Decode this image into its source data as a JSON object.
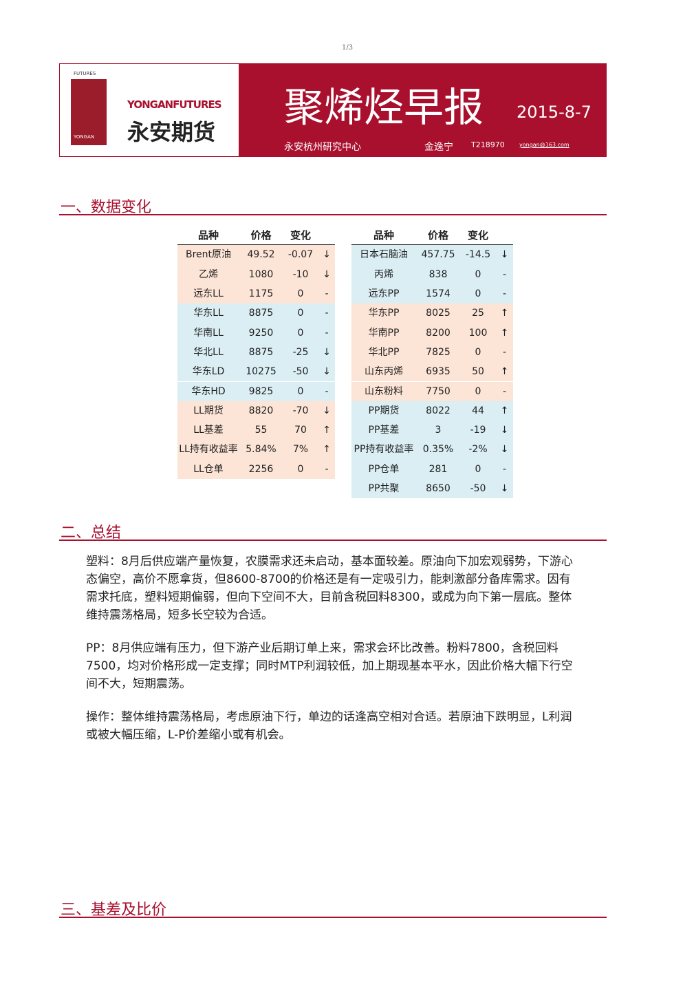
{
  "page_number": "1/3",
  "header": {
    "logo_small": "FUTURES",
    "logo_brand": "YONGANFUTURES",
    "logo_cn": "永安期货",
    "logo_bottom": "YONGAN",
    "title": "聚烯烃早报",
    "date": "2015-8-7",
    "org": "永安杭州研究中心",
    "author": "金逸宁",
    "license": "T218970",
    "email": "yongan@163.com"
  },
  "sections": [
    "一、数据变化",
    "二、总结",
    "三、基差及比价"
  ],
  "tables": [
    {
      "headers": [
        "品种",
        "价格",
        "变化"
      ],
      "groups": [
        [
          [
            "Brent原油",
            "49.52",
            "-0.07",
            "↓"
          ],
          [
            "乙烯",
            "1080",
            "-10",
            "↓"
          ],
          [
            "远东LL",
            "1175",
            "0",
            "-"
          ]
        ],
        [
          [
            "华东LL",
            "8875",
            "0",
            "-"
          ],
          [
            "华南LL",
            "9250",
            "0",
            "-"
          ],
          [
            "华北LL",
            "8875",
            "-25",
            "↓"
          ],
          [
            "华东LD",
            "10275",
            "-50",
            "↓"
          ],
          [
            "华东HD",
            "9825",
            "0",
            "-"
          ]
        ],
        [
          [
            "LL期货",
            "8820",
            "-70",
            "↓"
          ],
          [
            "LL基差",
            "55",
            "70",
            "↑"
          ],
          [
            "LL持有收益率",
            "5.84%",
            "7%",
            "↑"
          ],
          [
            "LL仓单",
            "2256",
            "0",
            "-"
          ]
        ]
      ]
    },
    {
      "headers": [
        "品种",
        "价格",
        "变化"
      ],
      "groups": [
        [
          [
            "日本石脑油",
            "457.75",
            "-14.5",
            "↓"
          ],
          [
            "丙烯",
            "838",
            "0",
            "-"
          ],
          [
            "远东PP",
            "1574",
            "0",
            "-"
          ]
        ],
        [
          [
            "华东PP",
            "8025",
            "25",
            "↑"
          ],
          [
            "华南PP",
            "8200",
            "100",
            "↑"
          ],
          [
            "华北PP",
            "7825",
            "0",
            "-"
          ],
          [
            "山东丙烯",
            "6935",
            "50",
            "↑"
          ],
          [
            "山东粉料",
            "7750",
            "0",
            "-"
          ]
        ],
        [
          [
            "PP期货",
            "8022",
            "44",
            "↑"
          ],
          [
            "PP基差",
            "3",
            "-19",
            "↓"
          ],
          [
            "PP持有收益率",
            "0.35%",
            "-2%",
            "↓"
          ],
          [
            "PP仓单",
            "281",
            "0",
            "-"
          ],
          [
            "PP共聚",
            "8650",
            "-50",
            "↓"
          ]
        ]
      ]
    }
  ],
  "paragraphs": [
    "塑料：8月后供应端产量恢复，农膜需求还未启动，基本面较差。原油向下加宏观弱势，下游心态偏空，高价不愿拿货，但8600-8700的价格还是有一定吸引力，能刺激部分备库需求。因有需求托底，塑料短期偏弱，但向下空间不大，目前含税回料8300，或成为向下第一层底。整体维持震荡格局，短多长空较为合适。",
    "PP：8月供应端有压力，但下游产业后期订单上来，需求会环比改善。粉料7800，含税回料7500，均对价格形成一定支撑；同时MTP利润较低，加上期现基本平水，因此价格大幅下行空间不大，短期震荡。",
    "操作：整体维持震荡格局，考虑原油下行，单边的话逢高空相对合适。若原油下跌明显，L利润或被大幅压缩，L-P价差缩小或有机会。"
  ]
}
